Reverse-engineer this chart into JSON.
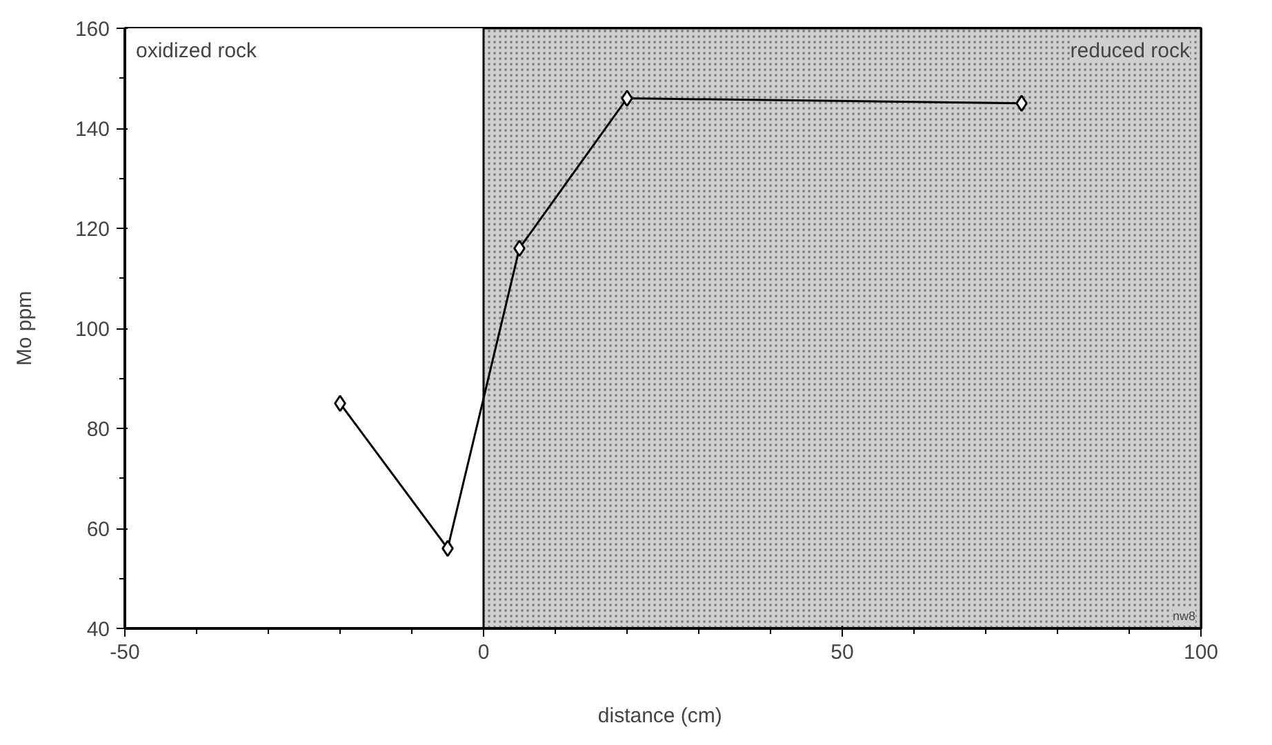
{
  "chart_data": {
    "type": "line",
    "xlabel": "distance  (cm)",
    "ylabel": "Mo ppm",
    "x": [
      -20,
      -5,
      5,
      20,
      75
    ],
    "series": [
      {
        "color": "#000000",
        "values": [
          85,
          56,
          116,
          146,
          145
        ]
      }
    ],
    "marker": "diamond",
    "line_style": "solid",
    "xlim": [
      -50,
      100
    ],
    "xticks": [
      -50,
      0,
      50,
      100
    ],
    "ylim": [
      40,
      160
    ],
    "yticks": [
      40,
      60,
      80,
      100,
      120,
      140,
      160
    ],
    "bands": [
      {
        "axis": "x",
        "from": -50,
        "to": 0,
        "label": "oxidized rock",
        "color": "#ffffff"
      },
      {
        "axis": "x",
        "from": 0,
        "to": 100,
        "label": "reduced rock",
        "color": "#cfcfcf"
      }
    ],
    "annotations": [
      "nw8"
    ]
  }
}
